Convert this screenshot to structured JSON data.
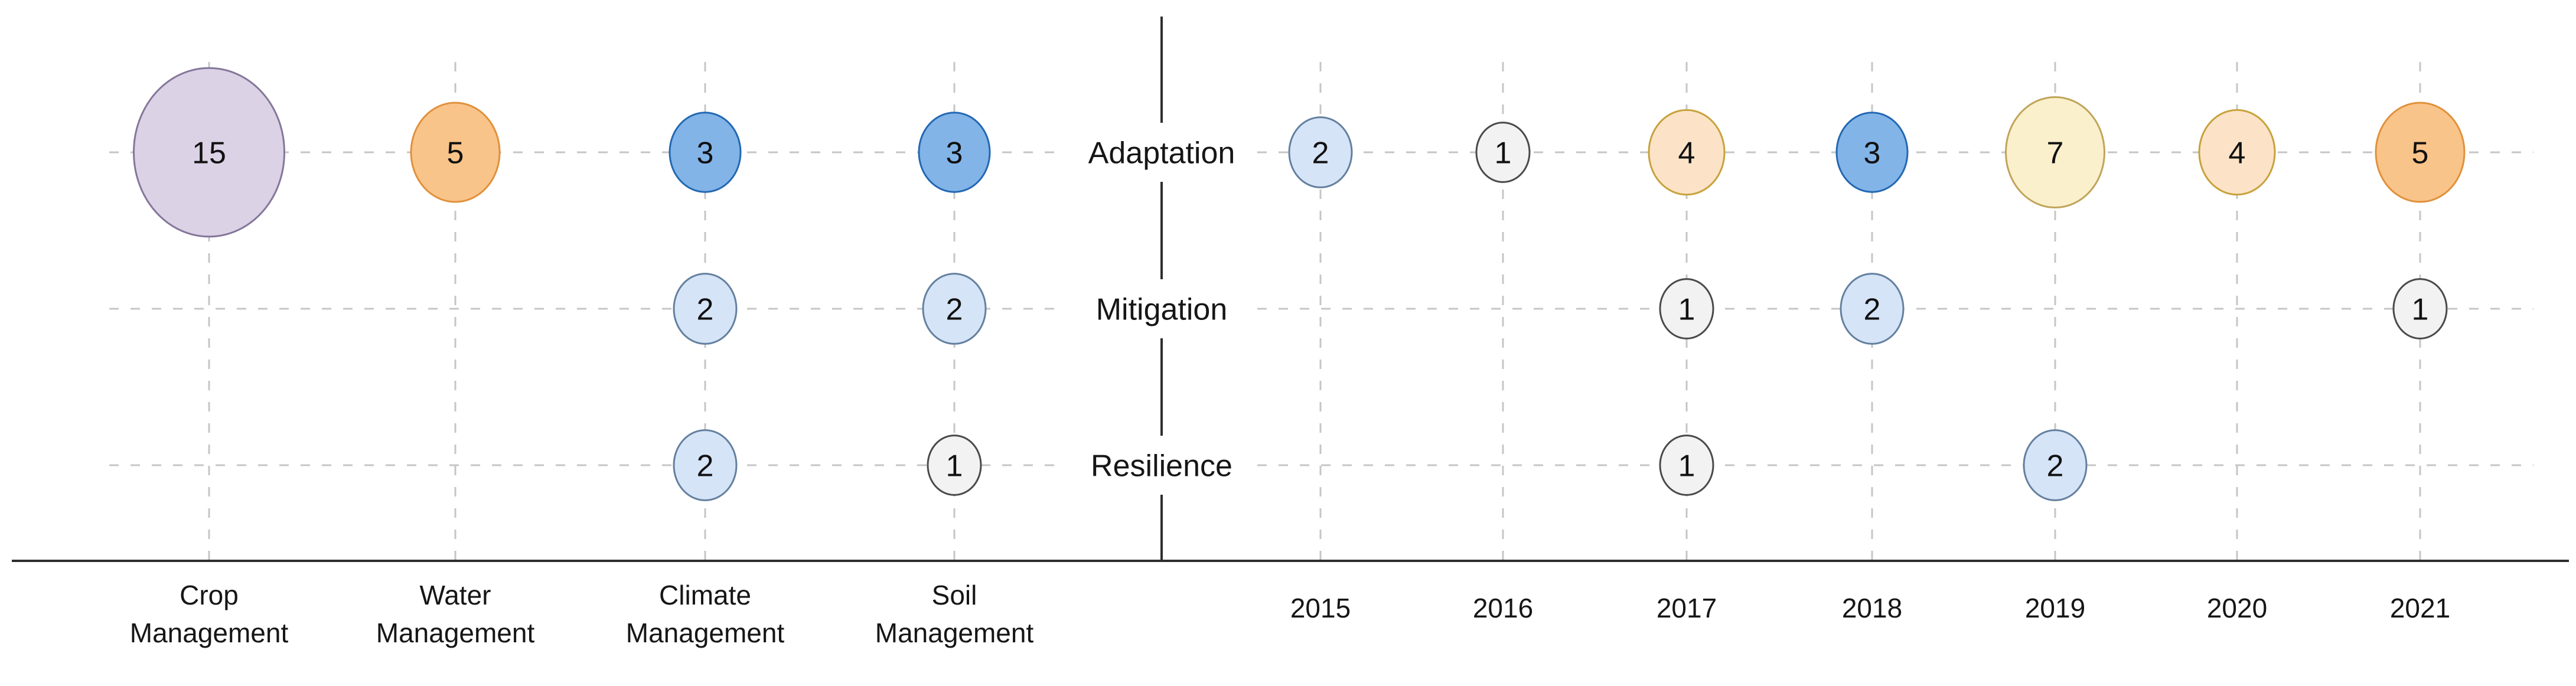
{
  "chart_data": {
    "type": "bubble",
    "title": "",
    "legend_position": "none",
    "grid": true,
    "size_by": "value",
    "rows": [
      "Adaptation",
      "Mitigation",
      "Resilience"
    ],
    "palette": {
      "purple": {
        "fill": "#DCD2E6",
        "stroke": "#84779A"
      },
      "orange": {
        "fill": "#F9C489",
        "stroke": "#E0913C"
      },
      "blue": {
        "fill": "#82B4E8",
        "stroke": "#2368B2"
      },
      "lightblue": {
        "fill": "#D6E4F7",
        "stroke": "#64809F"
      },
      "white": {
        "fill": "#F2F2F2",
        "stroke": "#4A4A4A"
      },
      "peach": {
        "fill": "#FCE3C7",
        "stroke": "#C7A23C"
      },
      "lightyellow": {
        "fill": "#FBF0CC",
        "stroke": "#C0A45A"
      }
    },
    "panels": [
      {
        "id": "themes",
        "categories": [
          "Crop Management",
          "Water Management",
          "Climate Management",
          "Soil Management"
        ],
        "series": [
          {
            "row": "Adaptation",
            "values": [
              15,
              5,
              3,
              3
            ],
            "colors": [
              "purple",
              "orange",
              "blue",
              "blue"
            ]
          },
          {
            "row": "Mitigation",
            "values": [
              null,
              null,
              2,
              2
            ],
            "colors": [
              null,
              null,
              "lightblue",
              "lightblue"
            ]
          },
          {
            "row": "Resilience",
            "values": [
              null,
              null,
              2,
              1
            ],
            "colors": [
              null,
              null,
              "lightblue",
              "white"
            ]
          }
        ]
      },
      {
        "id": "years",
        "categories": [
          "2015",
          "2016",
          "2017",
          "2018",
          "2019",
          "2020",
          "2021"
        ],
        "series": [
          {
            "row": "Adaptation",
            "values": [
              2,
              1,
              4,
              3,
              7,
              4,
              5
            ],
            "colors": [
              "lightblue",
              "white",
              "peach",
              "blue",
              "lightyellow",
              "peach",
              "orange"
            ]
          },
          {
            "row": "Mitigation",
            "values": [
              null,
              null,
              1,
              2,
              null,
              null,
              1
            ],
            "colors": [
              null,
              null,
              "white",
              "lightblue",
              null,
              null,
              "white"
            ]
          },
          {
            "row": "Resilience",
            "values": [
              null,
              null,
              1,
              null,
              2,
              null,
              null
            ],
            "colors": [
              null,
              null,
              "white",
              null,
              "lightblue",
              null,
              null
            ]
          }
        ]
      }
    ]
  }
}
